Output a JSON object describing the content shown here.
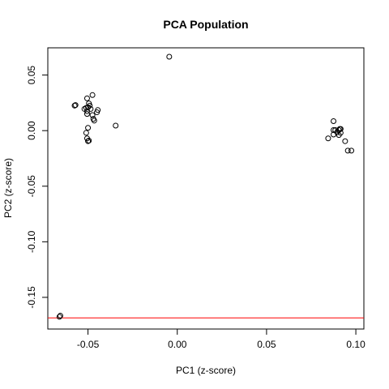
{
  "chart_data": {
    "type": "scatter",
    "title": "PCA Population",
    "xlabel": "PC1 (z-score)",
    "ylabel": "PC2 (z-score)",
    "xlim": [
      -0.0725,
      0.1045
    ],
    "ylim": [
      -0.1785,
      0.0745
    ],
    "xticks": [
      -0.05,
      0.0,
      0.05,
      0.1
    ],
    "xtick_labels": [
      "-0.05",
      "0.00",
      "0.05",
      "0.10"
    ],
    "yticks": [
      -0.15,
      -0.1,
      -0.05,
      0.0,
      0.05
    ],
    "ytick_labels": [
      "-0.15",
      "-0.10",
      "-0.05",
      "0.00",
      "0.05"
    ],
    "grid": false,
    "marker": "open-circle",
    "point_color": "#000000",
    "reference_line": {
      "orientation": "horizontal",
      "y": -0.1685,
      "color": "#ff0000"
    },
    "points": [
      {
        "x": -0.0045,
        "y": 0.0665
      },
      {
        "x": -0.0475,
        "y": 0.032
      },
      {
        "x": -0.0505,
        "y": 0.029
      },
      {
        "x": -0.057,
        "y": 0.023
      },
      {
        "x": -0.0575,
        "y": 0.0225
      },
      {
        "x": -0.0495,
        "y": 0.0245
      },
      {
        "x": -0.049,
        "y": 0.0225
      },
      {
        "x": -0.051,
        "y": 0.0205
      },
      {
        "x": -0.052,
        "y": 0.0195
      },
      {
        "x": -0.05,
        "y": 0.021
      },
      {
        "x": -0.0505,
        "y": 0.0175
      },
      {
        "x": -0.0485,
        "y": 0.0195
      },
      {
        "x": -0.0445,
        "y": 0.0185
      },
      {
        "x": -0.045,
        "y": 0.0165
      },
      {
        "x": -0.0505,
        "y": 0.015
      },
      {
        "x": -0.0475,
        "y": 0.014
      },
      {
        "x": -0.047,
        "y": 0.0105
      },
      {
        "x": -0.0465,
        "y": 0.009
      },
      {
        "x": -0.0345,
        "y": 0.0045
      },
      {
        "x": -0.05,
        "y": 0.0025
      },
      {
        "x": -0.051,
        "y": -0.002
      },
      {
        "x": -0.0505,
        "y": -0.007
      },
      {
        "x": -0.0495,
        "y": -0.009
      },
      {
        "x": -0.05,
        "y": -0.0095
      },
      {
        "x": 0.0875,
        "y": 0.0085
      },
      {
        "x": 0.091,
        "y": 0.0015
      },
      {
        "x": 0.0875,
        "y": 0.0005
      },
      {
        "x": 0.0885,
        "y": 0.0005
      },
      {
        "x": 0.0905,
        "y": 0.0005
      },
      {
        "x": 0.0915,
        "y": 0.0015
      },
      {
        "x": 0.0895,
        "y": -0.0015
      },
      {
        "x": 0.0915,
        "y": -0.002
      },
      {
        "x": 0.0875,
        "y": -0.0035
      },
      {
        "x": 0.0905,
        "y": -0.004
      },
      {
        "x": 0.0845,
        "y": -0.007
      },
      {
        "x": 0.094,
        "y": -0.0095
      },
      {
        "x": 0.0955,
        "y": -0.018
      },
      {
        "x": 0.0975,
        "y": -0.018
      },
      {
        "x": -0.0655,
        "y": -0.1665
      },
      {
        "x": -0.066,
        "y": -0.1675
      }
    ]
  }
}
